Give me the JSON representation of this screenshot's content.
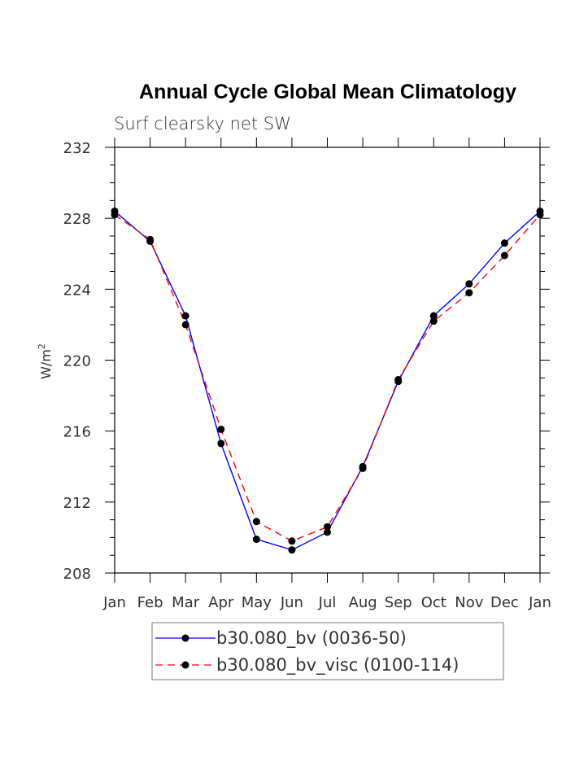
{
  "chart_data": {
    "type": "line",
    "title": "Annual Cycle Global Mean Climatology",
    "subtitle": "Surf clearsky net SW",
    "xlabel": "",
    "ylabel": "W/m",
    "ylabel_superscript": "2",
    "categories": [
      "Jan",
      "Feb",
      "Mar",
      "Apr",
      "May",
      "Jun",
      "Jul",
      "Aug",
      "Sep",
      "Oct",
      "Nov",
      "Dec",
      "Jan"
    ],
    "yticks": [
      "208",
      "212",
      "216",
      "220",
      "224",
      "228",
      "232"
    ],
    "ylim": [
      208,
      232
    ],
    "grid": false,
    "legend_position": "bottom-center",
    "series": [
      {
        "name": "b30.080_bv (0036-50)",
        "color": "#0000ff",
        "dash": "solid",
        "values": [
          228.4,
          226.7,
          222.5,
          215.3,
          209.9,
          209.3,
          210.3,
          214.0,
          218.8,
          222.5,
          224.3,
          226.6,
          228.4
        ]
      },
      {
        "name": "b30.080_bv_visc (0100-114)",
        "color": "#ff0000",
        "dash": "dashed",
        "values": [
          228.2,
          226.8,
          222.0,
          216.1,
          210.9,
          209.8,
          210.6,
          213.9,
          218.9,
          222.2,
          223.8,
          225.9,
          228.2
        ]
      }
    ]
  }
}
